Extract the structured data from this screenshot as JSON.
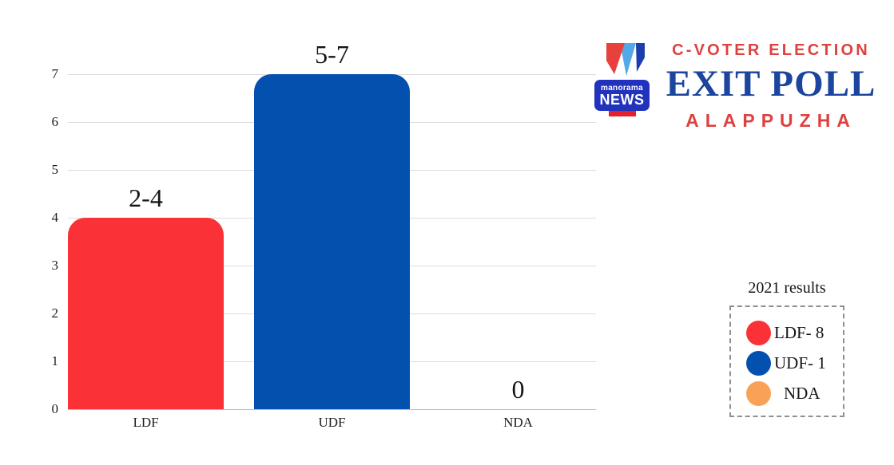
{
  "header": {
    "brand_line1": "C-VOTER ELECTION",
    "brand_line2": "EXIT POLL",
    "brand_line3": "ALAPPUZHA",
    "brand_colors": {
      "red": "#dd4140",
      "blue": "#1b459f"
    },
    "logo": {
      "top": "manorama",
      "bottom": "NEWS"
    }
  },
  "chart_data": {
    "type": "bar",
    "title": "",
    "categories": [
      "LDF",
      "UDF",
      "NDA"
    ],
    "values": [
      4,
      7,
      0
    ],
    "bar_labels": [
      "2-4",
      "5-7",
      "0"
    ],
    "bar_colors": [
      "#fa3137",
      "#0450ae",
      "#f9a257"
    ],
    "yticks": [
      0,
      1,
      2,
      3,
      4,
      5,
      6,
      7
    ],
    "ylim": [
      0,
      7
    ],
    "grid": "horizontal",
    "legend_position": "right"
  },
  "legend": {
    "title": "2021 results",
    "items": [
      {
        "label": "LDF- 8",
        "color": "#fa3137"
      },
      {
        "label": "UDF- 1",
        "color": "#0450ae"
      },
      {
        "label": "NDA",
        "color": "#f9a257"
      }
    ]
  }
}
